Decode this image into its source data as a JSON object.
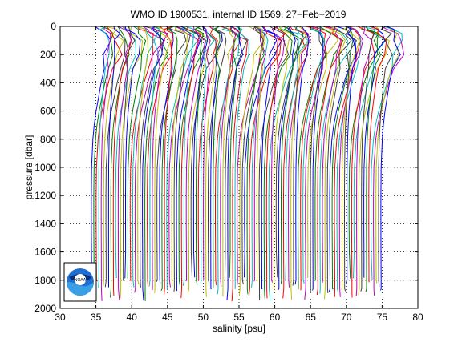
{
  "chart_data": {
    "type": "line",
    "title": "WMO ID 1900531, internal ID 1569, 27−Feb−2019",
    "xlabel": "salinity [psu]",
    "ylabel": "pressure [dbar]",
    "xlim": [
      30,
      80
    ],
    "ylim": [
      0,
      2000
    ],
    "y_reversed": true,
    "grid": true,
    "grid_style": "dotted",
    "x_ticks": [
      "30",
      "35",
      "40",
      "45",
      "50",
      "55",
      "60",
      "65",
      "70",
      "75",
      "80"
    ],
    "y_ticks": [
      "0",
      "200",
      "400",
      "600",
      "800",
      "1000",
      "1200",
      "1400",
      "1600",
      "1800",
      "2000"
    ],
    "x_tick_values": [
      30,
      35,
      40,
      45,
      50,
      55,
      60,
      65,
      70,
      75,
      80
    ],
    "y_tick_values": [
      0,
      200,
      400,
      600,
      800,
      1000,
      1200,
      1400,
      1600,
      1800,
      2000
    ],
    "series_colors": [
      "#0000ff",
      "#008000",
      "#ff0000",
      "#00bfbf",
      "#bf00bf",
      "#bfbf00",
      "#404040"
    ],
    "profile_offsets": {
      "count": 120,
      "first_salinity": 34.4,
      "spacing": 0.34
    },
    "profile_shape": {
      "pressure": [
        0,
        20,
        50,
        100,
        200,
        300,
        400,
        500,
        600,
        700,
        800,
        1000,
        1200,
        1400,
        1600,
        1800,
        1860
      ],
      "salinity_anomaly": [
        0.6,
        0.8,
        1.2,
        1.5,
        1.3,
        1.0,
        0.75,
        0.55,
        0.35,
        0.2,
        0.1,
        0.0,
        -0.02,
        -0.02,
        -0.01,
        0.0,
        0.0
      ]
    },
    "logo": "noaa-logo"
  }
}
